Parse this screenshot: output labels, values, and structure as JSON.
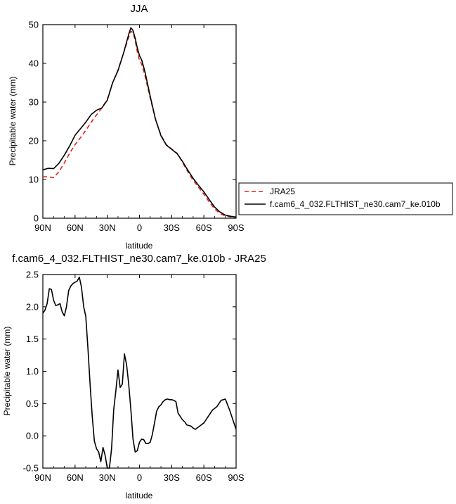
{
  "chart_data": [
    {
      "type": "line",
      "title": "JJA",
      "xlabel": "latitude",
      "ylabel": "Precipitable water (mm)",
      "xlim": [
        90,
        -90
      ],
      "ylim": [
        0,
        50
      ],
      "xticks": [
        {
          "value": 90,
          "label": "90N"
        },
        {
          "value": 60,
          "label": "60N"
        },
        {
          "value": 30,
          "label": "30N"
        },
        {
          "value": 0,
          "label": "0"
        },
        {
          "value": -30,
          "label": "30S"
        },
        {
          "value": -60,
          "label": "60S"
        },
        {
          "value": -90,
          "label": "90S"
        }
      ],
      "yticks": [
        0,
        10,
        20,
        30,
        40,
        50
      ],
      "legend_position": "right",
      "series": [
        {
          "name": "JRA25",
          "color": "#e0201b",
          "style": "dashed",
          "points": [
            [
              90,
              10.7
            ],
            [
              85,
              10.7
            ],
            [
              80,
              10.5
            ],
            [
              75,
              12.0
            ],
            [
              70,
              14.3
            ],
            [
              65,
              16.8
            ],
            [
              60,
              19.0
            ],
            [
              55,
              20.8
            ],
            [
              50,
              22.7
            ],
            [
              45,
              24.8
            ],
            [
              40,
              26.7
            ],
            [
              35,
              28.5
            ],
            [
              30,
              30.7
            ],
            [
              25,
              35.0
            ],
            [
              20,
              38.3
            ],
            [
              15,
              42.5
            ],
            [
              10,
              46.8
            ],
            [
              8,
              48.3
            ],
            [
              6,
              48.0
            ],
            [
              4,
              45.8
            ],
            [
              2,
              43.0
            ],
            [
              0,
              40.8
            ],
            [
              -2,
              39.8
            ],
            [
              -5,
              37.0
            ],
            [
              -10,
              31.0
            ],
            [
              -15,
              25.5
            ],
            [
              -20,
              21.5
            ],
            [
              -25,
              19.0
            ],
            [
              -30,
              17.9
            ],
            [
              -35,
              16.8
            ],
            [
              -40,
              14.5
            ],
            [
              -45,
              12.0
            ],
            [
              -50,
              9.8
            ],
            [
              -55,
              8.0
            ],
            [
              -60,
              6.2
            ],
            [
              -65,
              4.2
            ],
            [
              -70,
              2.4
            ],
            [
              -75,
              1.2
            ],
            [
              -80,
              0.6
            ],
            [
              -85,
              0.35
            ],
            [
              -90,
              0.2
            ]
          ]
        },
        {
          "name": "f.cam6_4_032.FLTHIST_ne30.cam7_ke.010b",
          "color": "#000000",
          "style": "solid",
          "points": [
            [
              90,
              12.5
            ],
            [
              85,
              12.9
            ],
            [
              80,
              12.8
            ],
            [
              75,
              14.2
            ],
            [
              70,
              16.3
            ],
            [
              65,
              18.7
            ],
            [
              60,
              21.4
            ],
            [
              55,
              23.1
            ],
            [
              50,
              24.8
            ],
            [
              45,
              26.8
            ],
            [
              40,
              27.9
            ],
            [
              35,
              28.5
            ],
            [
              30,
              30.5
            ],
            [
              25,
              35.0
            ],
            [
              20,
              38.1
            ],
            [
              15,
              42.5
            ],
            [
              10,
              47.5
            ],
            [
              8,
              49.2
            ],
            [
              6,
              48.5
            ],
            [
              4,
              46.5
            ],
            [
              2,
              44.0
            ],
            [
              0,
              42.0
            ],
            [
              -2,
              40.9
            ],
            [
              -5,
              38.0
            ],
            [
              -10,
              31.5
            ],
            [
              -15,
              25.5
            ],
            [
              -20,
              21.3
            ],
            [
              -25,
              18.9
            ],
            [
              -30,
              17.8
            ],
            [
              -35,
              16.7
            ],
            [
              -40,
              14.7
            ],
            [
              -45,
              12.4
            ],
            [
              -50,
              10.3
            ],
            [
              -55,
              8.5
            ],
            [
              -60,
              6.8
            ],
            [
              -65,
              4.8
            ],
            [
              -70,
              2.9
            ],
            [
              -75,
              1.6
            ],
            [
              -80,
              0.8
            ],
            [
              -85,
              0.5
            ],
            [
              -90,
              0.3
            ]
          ]
        }
      ]
    },
    {
      "type": "line",
      "title": "f.cam6_4_032.FLTHIST_ne30.cam7_ke.010b - JRA25",
      "xlabel": "latitude",
      "ylabel": "Precipitable water (mm)",
      "xlim": [
        90,
        -90
      ],
      "ylim": [
        -0.5,
        2.5
      ],
      "xticks": [
        {
          "value": 90,
          "label": "90N"
        },
        {
          "value": 60,
          "label": "60N"
        },
        {
          "value": 30,
          "label": "30N"
        },
        {
          "value": 0,
          "label": "0"
        },
        {
          "value": -30,
          "label": "30S"
        },
        {
          "value": -60,
          "label": "60S"
        },
        {
          "value": -90,
          "label": "90S"
        }
      ],
      "yticks": [
        "-0.5",
        "0.0",
        "0.5",
        "1.0",
        "1.5",
        "2.0",
        "2.5"
      ],
      "series": [
        {
          "color": "#000000",
          "style": "solid",
          "points": [
            [
              90,
              1.9
            ],
            [
              88,
              1.95
            ],
            [
              86,
              2.05
            ],
            [
              84,
              2.28
            ],
            [
              82,
              2.27
            ],
            [
              80,
              2.1
            ],
            [
              78,
              2.02
            ],
            [
              76,
              2.03
            ],
            [
              74,
              2.05
            ],
            [
              72,
              1.92
            ],
            [
              70,
              1.86
            ],
            [
              68,
              2.0
            ],
            [
              66,
              2.25
            ],
            [
              64,
              2.32
            ],
            [
              62,
              2.36
            ],
            [
              60,
              2.38
            ],
            [
              58,
              2.4
            ],
            [
              56,
              2.46
            ],
            [
              54,
              2.3
            ],
            [
              52,
              2.0
            ],
            [
              50,
              1.85
            ],
            [
              48,
              1.35
            ],
            [
              46,
              0.8
            ],
            [
              44,
              0.3
            ],
            [
              42,
              -0.08
            ],
            [
              40,
              -0.2
            ],
            [
              38,
              -0.25
            ],
            [
              36,
              -0.4
            ],
            [
              34,
              -0.18
            ],
            [
              32,
              -0.3
            ],
            [
              30,
              -0.5
            ],
            [
              28,
              -0.5
            ],
            [
              26,
              -0.2
            ],
            [
              24,
              0.4
            ],
            [
              22,
              0.7
            ],
            [
              20,
              1.02
            ],
            [
              18,
              0.75
            ],
            [
              16,
              0.8
            ],
            [
              14,
              1.27
            ],
            [
              12,
              1.1
            ],
            [
              10,
              0.8
            ],
            [
              8,
              0.4
            ],
            [
              6,
              -0.05
            ],
            [
              4,
              -0.25
            ],
            [
              2,
              -0.23
            ],
            [
              0,
              -0.1
            ],
            [
              -2,
              -0.05
            ],
            [
              -4,
              -0.06
            ],
            [
              -6,
              -0.12
            ],
            [
              -8,
              -0.12
            ],
            [
              -10,
              -0.1
            ],
            [
              -12,
              0.02
            ],
            [
              -14,
              0.2
            ],
            [
              -16,
              0.38
            ],
            [
              -18,
              0.45
            ],
            [
              -20,
              0.48
            ],
            [
              -22,
              0.53
            ],
            [
              -24,
              0.56
            ],
            [
              -26,
              0.57
            ],
            [
              -28,
              0.56
            ],
            [
              -30,
              0.56
            ],
            [
              -32,
              0.55
            ],
            [
              -34,
              0.53
            ],
            [
              -36,
              0.35
            ],
            [
              -38,
              0.3
            ],
            [
              -40,
              0.25
            ],
            [
              -42,
              0.22
            ],
            [
              -44,
              0.17
            ],
            [
              -46,
              0.16
            ],
            [
              -48,
              0.15
            ],
            [
              -50,
              0.12
            ],
            [
              -52,
              0.1
            ],
            [
              -56,
              0.15
            ],
            [
              -60,
              0.2
            ],
            [
              -64,
              0.3
            ],
            [
              -68,
              0.4
            ],
            [
              -72,
              0.45
            ],
            [
              -76,
              0.55
            ],
            [
              -80,
              0.57
            ],
            [
              -84,
              0.4
            ],
            [
              -86,
              0.3
            ],
            [
              -88,
              0.2
            ],
            [
              -90,
              0.1
            ]
          ]
        }
      ]
    }
  ]
}
